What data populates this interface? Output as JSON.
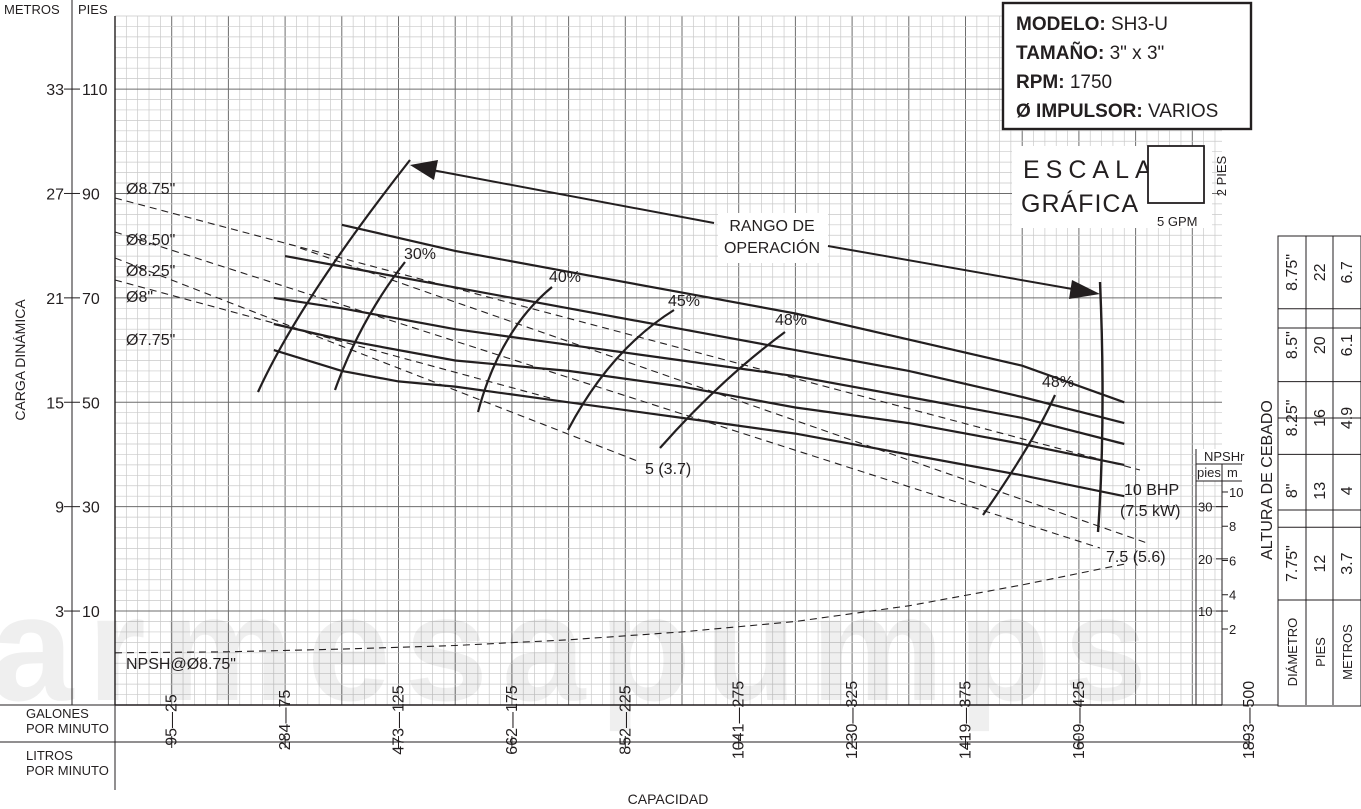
{
  "chart_data": {
    "type": "line",
    "model_box": {
      "model_label": "MODELO:",
      "model_value": "SH3-U",
      "size_label": "TAMAÑO:",
      "size_value": "3\" x 3\"",
      "rpm_label": "RPM:",
      "rpm_value": "1750",
      "impeller_label": "Ø IMPULSOR:",
      "impeller_value": "VARIOS"
    },
    "scale": {
      "line1": "ESCALA",
      "line2": "GRÁFICA",
      "feet": "2 PIES",
      "gpm": "5 GPM"
    },
    "y_axis": {
      "label": "CARGA DINÁMICA",
      "unit_left": "METROS",
      "unit_right": "PIES",
      "ticks": [
        {
          "m": "3",
          "ft": 10
        },
        {
          "m": "9",
          "ft": 30
        },
        {
          "m": "15",
          "ft": 50
        },
        {
          "m": "21",
          "ft": 70
        },
        {
          "m": "27",
          "ft": 90
        },
        {
          "m": "33",
          "ft": 110
        }
      ],
      "ylim": [
        -8,
        124
      ]
    },
    "x_axis": {
      "label": "CAPACIDAD",
      "gpm_label": [
        "GALONES",
        "POR MINUTO"
      ],
      "lpm_label": [
        "LITROS",
        "POR MINUTO"
      ],
      "ticks": [
        {
          "gpm": 25,
          "lpm": "95"
        },
        {
          "gpm": 75,
          "lpm": "284"
        },
        {
          "gpm": 125,
          "lpm": "473"
        },
        {
          "gpm": 175,
          "lpm": "662"
        },
        {
          "gpm": 225,
          "lpm": "852"
        },
        {
          "gpm": 275,
          "lpm": "1041"
        },
        {
          "gpm": 325,
          "lpm": "1230"
        },
        {
          "gpm": 375,
          "lpm": "1419"
        },
        {
          "gpm": 425,
          "lpm": "1609"
        },
        {
          "gpm": 500,
          "lpm": "1893"
        }
      ],
      "xlim": [
        0,
        500
      ]
    },
    "series": [
      {
        "name": "Ø8.75\"",
        "x": [
          100,
          150,
          200,
          250,
          300,
          350,
          400,
          445
        ],
        "y": [
          84,
          79,
          75,
          71,
          67,
          62,
          57,
          50
        ]
      },
      {
        "name": "Ø8.50\"",
        "x": [
          75,
          100,
          150,
          200,
          250,
          300,
          350,
          400,
          445
        ],
        "y": [
          78,
          76,
          72,
          68,
          64,
          60,
          56,
          51,
          46
        ]
      },
      {
        "name": "Ø8.25\"",
        "x": [
          70,
          100,
          150,
          200,
          250,
          300,
          350,
          400,
          445
        ],
        "y": [
          70,
          68,
          64,
          61,
          58,
          55,
          51,
          47,
          42
        ]
      },
      {
        "name": "Ø8\"",
        "x": [
          70,
          100,
          150,
          200,
          250,
          300,
          350,
          400,
          445
        ],
        "y": [
          65,
          62,
          58,
          56,
          53,
          49,
          46,
          42,
          38
        ]
      },
      {
        "name": "Ø7.75\"",
        "x": [
          70,
          100,
          125,
          150,
          200,
          250,
          300,
          350,
          400,
          445
        ],
        "y": [
          60,
          56,
          54,
          53,
          50,
          47,
          44,
          40,
          36,
          32
        ]
      }
    ],
    "efficiency_labels": [
      "30%",
      "40%",
      "45%",
      "48%",
      "48%"
    ],
    "power_labels": [
      "5 (3.7)",
      "7.5 (5.6)",
      "10 BHP",
      "(7.5 kW)"
    ],
    "operating_range_label": [
      "RANGO DE",
      "OPERACIÓN"
    ],
    "npsh": {
      "label": "NPSH@Ø8.75\"",
      "x": [
        0,
        50,
        100,
        150,
        200,
        250,
        300,
        350,
        400,
        445
      ],
      "y_ft": [
        2,
        2.2,
        2.7,
        3.4,
        4.5,
        6,
        8,
        11,
        15,
        19
      ],
      "axis_title": "NPSHr",
      "unit_ft": "pies",
      "unit_m": "m",
      "ticks_ft": [
        "10",
        "20",
        "30"
      ],
      "ticks_m": [
        "2",
        "4",
        "6",
        "8",
        "10"
      ]
    },
    "priming_table": {
      "title": "ALTURA DE CEBADO",
      "headers": [
        "DIÁMETRO",
        "PIES",
        "METROS"
      ],
      "rows": [
        {
          "diameter": "8.75\"",
          "feet": "22",
          "meters": "6.7"
        },
        {
          "diameter": "8.5\"",
          "feet": "20",
          "meters": "6.1"
        },
        {
          "diameter": "8.25\"",
          "feet": "16",
          "meters": "4.9"
        },
        {
          "diameter": "8\"",
          "feet": "13",
          "meters": "4"
        },
        {
          "diameter": "7.75\"",
          "feet": "12",
          "meters": "3.7"
        }
      ]
    },
    "watermark": "armesapumps"
  }
}
